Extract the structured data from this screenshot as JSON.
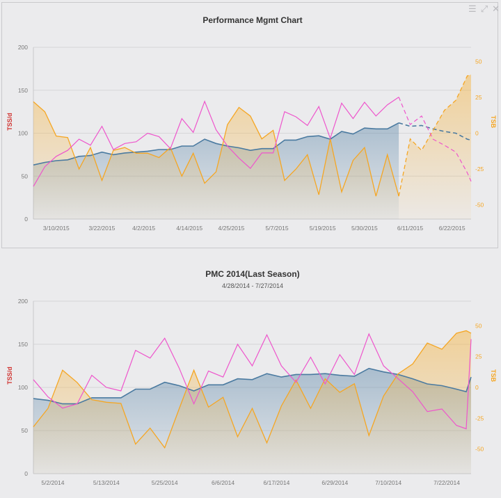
{
  "toolbar": {
    "menu_icon": "menu-icon",
    "expand_icon": "expand-icon",
    "close_icon": "close-icon"
  },
  "colors": {
    "ctl": "#4a7aa0",
    "atl": "#ee55cc",
    "tsb": "#f5a623",
    "left_axis_title": "#d0322f"
  },
  "chart_data": [
    {
      "type": "line",
      "title": "Performance Mgmt Chart",
      "subtitle": "",
      "ylabel": "TSS/d",
      "y2label": "TSB",
      "ylim": [
        0,
        200
      ],
      "yticks": [
        0,
        50,
        100,
        150,
        200
      ],
      "y2lim": [
        -60,
        60
      ],
      "y2ticks": [
        -50,
        -25,
        0,
        25,
        50
      ],
      "xlim": [
        "2015-03-04",
        "2015-06-27"
      ],
      "xticks": [
        "3/10/2015",
        "3/22/2015",
        "4/2/2015",
        "4/14/2015",
        "4/25/2015",
        "5/7/2015",
        "5/19/2015",
        "5/30/2015",
        "6/11/2015",
        "6/22/2015"
      ],
      "grid": true,
      "forecast_from": "2015-06-08",
      "x": [
        "2015-03-04",
        "2015-03-07",
        "2015-03-10",
        "2015-03-13",
        "2015-03-16",
        "2015-03-19",
        "2015-03-22",
        "2015-03-25",
        "2015-03-28",
        "2015-03-31",
        "2015-04-03",
        "2015-04-06",
        "2015-04-09",
        "2015-04-12",
        "2015-04-15",
        "2015-04-18",
        "2015-04-21",
        "2015-04-24",
        "2015-04-27",
        "2015-04-30",
        "2015-05-03",
        "2015-05-06",
        "2015-05-09",
        "2015-05-12",
        "2015-05-15",
        "2015-05-18",
        "2015-05-21",
        "2015-05-24",
        "2015-05-27",
        "2015-05-30",
        "2015-06-02",
        "2015-06-05",
        "2015-06-08",
        "2015-06-11",
        "2015-06-14",
        "2015-06-17",
        "2015-06-20",
        "2015-06-23",
        "2015-06-26",
        "2015-06-27"
      ],
      "series": [
        {
          "key": "ctl",
          "axis": "left",
          "values": [
            63,
            66,
            68,
            69,
            73,
            74,
            78,
            75,
            77,
            78,
            79,
            81,
            81,
            85,
            85,
            93,
            88,
            85,
            83,
            80,
            82,
            82,
            92,
            92,
            96,
            97,
            93,
            102,
            99,
            106,
            105,
            105,
            112,
            108,
            109,
            105,
            102,
            100,
            93,
            92
          ]
        },
        {
          "key": "atl",
          "axis": "left",
          "values": [
            38,
            61,
            73,
            80,
            93,
            86,
            108,
            81,
            88,
            90,
            100,
            96,
            82,
            117,
            101,
            137,
            104,
            85,
            71,
            59,
            77,
            77,
            125,
            119,
            109,
            131,
            94,
            135,
            117,
            136,
            120,
            133,
            142,
            110,
            120,
            93,
            86,
            78,
            54,
            44
          ]
        },
        {
          "key": "tsb",
          "axis": "right",
          "values": [
            22,
            15,
            -2,
            -3,
            -25,
            -10,
            -33,
            -12,
            -10,
            -14,
            -14,
            -17,
            -10,
            -30,
            -14,
            -35,
            -27,
            6,
            18,
            12,
            -4,
            2,
            -33,
            -25,
            -15,
            -43,
            -4,
            -41,
            -19,
            -10,
            -44,
            -15,
            -44,
            -4,
            -12,
            2,
            16,
            23,
            40,
            41
          ]
        }
      ]
    },
    {
      "type": "line",
      "title": "PMC 2014(Last Season)",
      "subtitle": "4/28/2014 - 7/27/2014",
      "ylabel": "TSS/d",
      "y2label": "TSB",
      "ylim": [
        0,
        200
      ],
      "yticks": [
        0,
        50,
        100,
        150,
        200
      ],
      "y2lim": [
        -70,
        70
      ],
      "y2ticks": [
        -50,
        -25,
        0,
        25,
        50
      ],
      "xlim": [
        "2014-04-28",
        "2014-07-27"
      ],
      "xticks": [
        "5/2/2014",
        "5/13/2014",
        "5/25/2014",
        "6/6/2014",
        "6/17/2014",
        "6/29/2014",
        "7/10/2014",
        "7/22/2014"
      ],
      "grid": true,
      "x": [
        "2014-04-28",
        "2014-05-01",
        "2014-05-04",
        "2014-05-07",
        "2014-05-10",
        "2014-05-13",
        "2014-05-16",
        "2014-05-19",
        "2014-05-22",
        "2014-05-25",
        "2014-05-28",
        "2014-05-31",
        "2014-06-03",
        "2014-06-06",
        "2014-06-09",
        "2014-06-12",
        "2014-06-15",
        "2014-06-18",
        "2014-06-21",
        "2014-06-24",
        "2014-06-27",
        "2014-06-30",
        "2014-07-03",
        "2014-07-06",
        "2014-07-09",
        "2014-07-12",
        "2014-07-15",
        "2014-07-18",
        "2014-07-21",
        "2014-07-24",
        "2014-07-26",
        "2014-07-27"
      ],
      "series": [
        {
          "key": "ctl",
          "axis": "left",
          "values": [
            87,
            85,
            81,
            81,
            88,
            88,
            88,
            98,
            98,
            106,
            102,
            96,
            103,
            103,
            110,
            109,
            116,
            112,
            115,
            115,
            116,
            114,
            113,
            122,
            118,
            115,
            110,
            104,
            102,
            98,
            95,
            112
          ]
        },
        {
          "key": "atl",
          "axis": "left",
          "values": [
            109,
            89,
            76,
            81,
            114,
            100,
            96,
            143,
            134,
            157,
            122,
            81,
            119,
            112,
            150,
            125,
            161,
            125,
            106,
            135,
            104,
            138,
            115,
            162,
            125,
            110,
            95,
            72,
            75,
            56,
            52,
            156
          ]
        },
        {
          "key": "tsb",
          "axis": "right",
          "values": [
            -32,
            -17,
            14,
            4,
            -10,
            -12,
            -13,
            -46,
            -33,
            -49,
            -17,
            14,
            -16,
            -8,
            -40,
            -17,
            -45,
            -15,
            6,
            -17,
            7,
            -4,
            3,
            -39,
            -7,
            11,
            19,
            36,
            31,
            44,
            46,
            44
          ]
        }
      ]
    }
  ]
}
